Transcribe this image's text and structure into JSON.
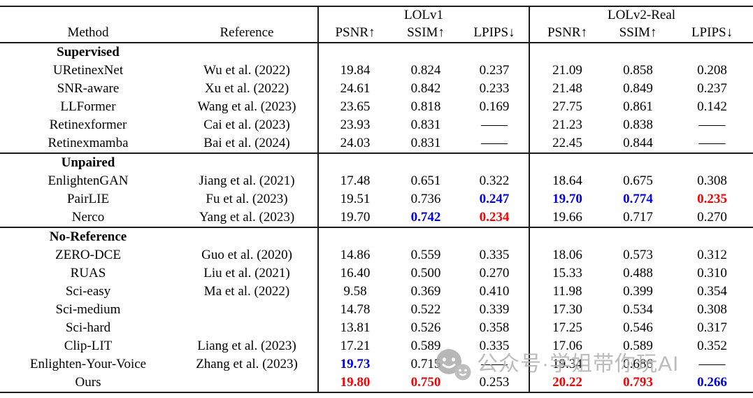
{
  "table": {
    "groups": [
      {
        "label": "LOLv1"
      },
      {
        "label": "LOLv2-Real"
      }
    ],
    "headers": {
      "method": "Method",
      "reference": "Reference",
      "metrics": [
        "PSNR↑",
        "SSIM↑",
        "LPIPS↓"
      ]
    },
    "colors": {
      "best": "#ff0000",
      "second_best": "#0000ee",
      "text": "#000000",
      "rule": "#1b1b1b"
    },
    "dash": "——",
    "sections": [
      {
        "title": "Supervised",
        "rows": [
          {
            "method": "URetinexNet",
            "reference": "Wu et al. (2022)",
            "values": [
              "19.84",
              "0.824",
              "0.237",
              "21.09",
              "0.858",
              "0.208"
            ]
          },
          {
            "method": "SNR-aware",
            "reference": "Xu et al. (2022)",
            "values": [
              "24.61",
              "0.842",
              "0.233",
              "21.48",
              "0.849",
              "0.237"
            ]
          },
          {
            "method": "LLFormer",
            "reference": "Wang et al. (2023)",
            "values": [
              "23.65",
              "0.818",
              "0.169",
              "27.75",
              "0.861",
              "0.142"
            ]
          },
          {
            "method": "Retinexformer",
            "reference": "Cai et al. (2023)",
            "values": [
              "23.93",
              "0.831",
              "——",
              "21.23",
              "0.838",
              "——"
            ]
          },
          {
            "method": "Retinexmamba",
            "reference": "Bai et al. (2024)",
            "values": [
              "24.03",
              "0.831",
              "——",
              "22.45",
              "0.844",
              "——"
            ]
          }
        ]
      },
      {
        "title": "Unpaired",
        "rows": [
          {
            "method": "EnlightenGAN",
            "reference": "Jiang et al. (2021)",
            "values": [
              "17.48",
              "0.651",
              "0.322",
              "18.64",
              "0.675",
              "0.308"
            ]
          },
          {
            "method": "PairLIE",
            "reference": "Fu et al. (2023)",
            "values": [
              "19.51",
              "0.736",
              "0.247",
              "19.70",
              "0.774",
              "0.235"
            ],
            "styles": [
              null,
              null,
              "second",
              "second",
              "second",
              "best"
            ]
          },
          {
            "method": "Nerco",
            "reference": "Yang et al. (2023)",
            "values": [
              "19.70",
              "0.742",
              "0.234",
              "19.66",
              "0.717",
              "0.270"
            ],
            "styles": [
              null,
              "second",
              "best",
              null,
              null,
              null
            ]
          }
        ]
      },
      {
        "title": "No-Reference",
        "rows": [
          {
            "method": "ZERO-DCE",
            "reference": "Guo et al. (2020)",
            "values": [
              "14.86",
              "0.559",
              "0.335",
              "18.06",
              "0.573",
              "0.312"
            ]
          },
          {
            "method": "RUAS",
            "reference": "Liu et al. (2021)",
            "values": [
              "16.40",
              "0.500",
              "0.270",
              "15.33",
              "0.488",
              "0.310"
            ]
          },
          {
            "method": "Sci-easy",
            "reference": "Ma et al. (2022)",
            "values": [
              "9.58",
              "0.369",
              "0.410",
              "11.98",
              "0.399",
              "0.354"
            ]
          },
          {
            "method": "Sci-medium",
            "reference": "",
            "values": [
              "14.78",
              "0.522",
              "0.339",
              "17.30",
              "0.534",
              "0.308"
            ]
          },
          {
            "method": "Sci-hard",
            "reference": "",
            "values": [
              "13.81",
              "0.526",
              "0.358",
              "17.25",
              "0.546",
              "0.317"
            ]
          },
          {
            "method": "Clip-LIT",
            "reference": "Liang et al. (2023)",
            "values": [
              "17.21",
              "0.589",
              "0.335",
              "17.06",
              "0.589",
              "0.352"
            ]
          },
          {
            "method": "Enlighten-Your-Voice",
            "reference": "Zhang et al. (2023)",
            "values": [
              "19.73",
              "0.715",
              "——",
              "19.34",
              "0.686",
              "——"
            ],
            "styles": [
              "second",
              null,
              null,
              null,
              null,
              null
            ]
          },
          {
            "method": "Ours",
            "reference": "",
            "values": [
              "19.80",
              "0.750",
              "0.253",
              "20.22",
              "0.793",
              "0.266"
            ],
            "styles": [
              "best",
              "best",
              null,
              "best",
              "best",
              "second"
            ]
          }
        ]
      }
    ]
  },
  "watermark": {
    "text": "公众号·学姐带你玩AI",
    "icon": "chat-faces-icon",
    "color": "#b3b3b3"
  }
}
